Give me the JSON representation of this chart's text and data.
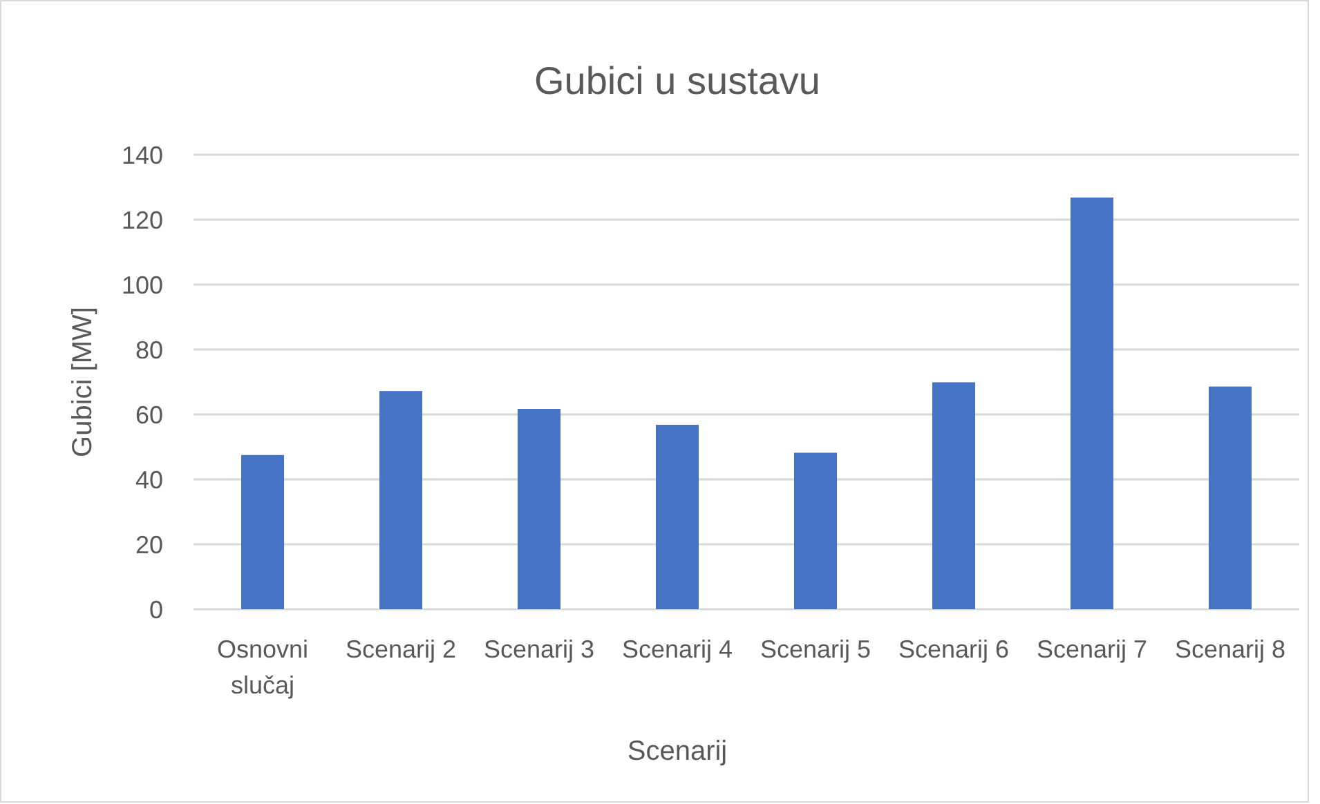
{
  "chart_data": {
    "type": "bar",
    "title": "Gubici u sustavu",
    "xlabel": "Scenarij",
    "ylabel": "Gubici [MW]",
    "categories": [
      "Osnovni slučaj",
      "Scenarij 2",
      "Scenarij 3",
      "Scenarij 4",
      "Scenarij 5",
      "Scenarij 6",
      "Scenarij 7",
      "Scenarij 8"
    ],
    "values": [
      47.5,
      67.2,
      61.7,
      56.8,
      48.2,
      69.9,
      126.8,
      68.6
    ],
    "color": "#4472c4",
    "ylim": [
      0,
      140
    ],
    "yticks": [
      0,
      20,
      40,
      60,
      80,
      100,
      120,
      140
    ],
    "grid": "y"
  }
}
